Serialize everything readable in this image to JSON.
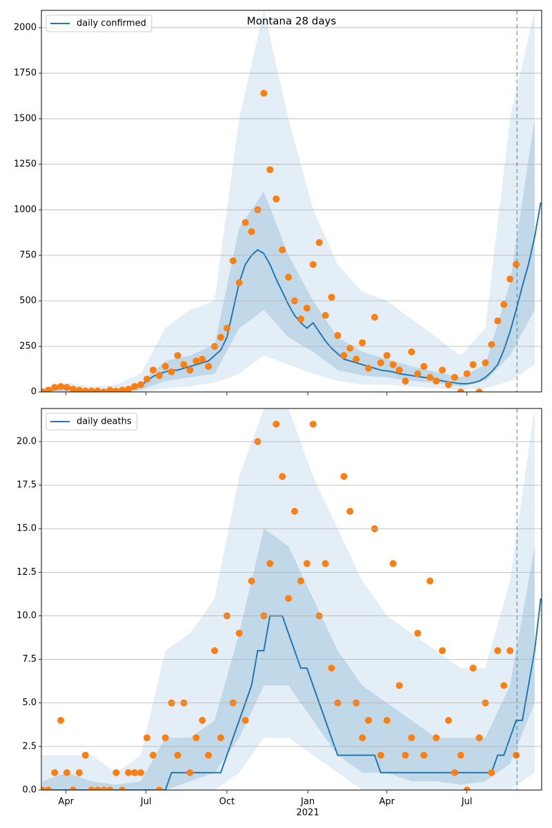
{
  "chart_data": [
    {
      "type": "line",
      "title": "Montana 28 days",
      "x": [
        "2020-03-05",
        "2020-03-12",
        "2020-03-19",
        "2020-03-26",
        "2020-04-02",
        "2020-04-09",
        "2020-04-16",
        "2020-04-23",
        "2020-04-30",
        "2020-05-07",
        "2020-05-14",
        "2020-05-21",
        "2020-05-28",
        "2020-06-04",
        "2020-06-11",
        "2020-06-18",
        "2020-06-25",
        "2020-07-02",
        "2020-07-09",
        "2020-07-16",
        "2020-07-23",
        "2020-07-30",
        "2020-08-06",
        "2020-08-13",
        "2020-08-20",
        "2020-08-27",
        "2020-09-03",
        "2020-09-10",
        "2020-09-17",
        "2020-09-24",
        "2020-10-01",
        "2020-10-08",
        "2020-10-15",
        "2020-10-22",
        "2020-10-29",
        "2020-11-05",
        "2020-11-12",
        "2020-11-19",
        "2020-11-26",
        "2020-12-03",
        "2020-12-10",
        "2020-12-17",
        "2020-12-24",
        "2020-12-31",
        "2021-01-07",
        "2021-01-14",
        "2021-01-21",
        "2021-01-28",
        "2021-02-04",
        "2021-02-11",
        "2021-02-18",
        "2021-02-25",
        "2021-03-04",
        "2021-03-11",
        "2021-03-18",
        "2021-03-25",
        "2021-04-01",
        "2021-04-08",
        "2021-04-15",
        "2021-04-22",
        "2021-04-29",
        "2021-05-06",
        "2021-05-13",
        "2021-05-20",
        "2021-05-27",
        "2021-06-03",
        "2021-06-10",
        "2021-06-17",
        "2021-06-24",
        "2021-07-01",
        "2021-07-08",
        "2021-07-15",
        "2021-07-22",
        "2021-07-29",
        "2021-08-05",
        "2021-08-12",
        "2021-08-19",
        "2021-08-26",
        "2021-09-02",
        "2021-09-09",
        "2021-09-16",
        "2021-09-23"
      ],
      "series": [
        {
          "name": "daily confirmed",
          "color": "#1f77b4",
          "values": [
            2,
            8,
            15,
            20,
            20,
            15,
            10,
            8,
            6,
            5,
            5,
            5,
            6,
            8,
            12,
            20,
            35,
            60,
            85,
            100,
            110,
            120,
            120,
            130,
            140,
            150,
            160,
            170,
            200,
            230,
            300,
            450,
            600,
            700,
            750,
            780,
            760,
            700,
            620,
            550,
            480,
            420,
            380,
            350,
            380,
            330,
            280,
            240,
            210,
            180,
            170,
            160,
            150,
            140,
            130,
            120,
            115,
            110,
            100,
            95,
            90,
            85,
            80,
            75,
            70,
            60,
            55,
            50,
            45,
            45,
            50,
            60,
            80,
            110,
            150,
            230,
            330,
            450,
            580,
            700,
            850,
            1040
          ]
        }
      ],
      "observed": {
        "color": "#ff7f0e",
        "values": [
          0,
          10,
          25,
          30,
          25,
          15,
          10,
          5,
          5,
          5,
          0,
          10,
          5,
          10,
          15,
          30,
          40,
          70,
          120,
          90,
          140,
          110,
          200,
          150,
          120,
          170,
          180,
          140,
          250,
          300,
          350,
          720,
          600,
          930,
          880,
          1000,
          1640,
          1220,
          1060,
          780,
          630,
          500,
          400,
          460,
          700,
          820,
          420,
          520,
          310,
          200,
          240,
          180,
          270,
          130,
          410,
          160,
          200,
          150,
          120,
          60,
          220,
          100,
          140,
          80,
          60,
          120,
          40,
          80,
          0,
          100,
          150,
          0,
          160,
          260,
          390,
          480,
          620,
          700,
          null,
          null,
          null,
          null
        ]
      },
      "band_x": [
        "2020-03-05",
        "2020-04-02",
        "2020-04-30",
        "2020-05-28",
        "2020-06-25",
        "2020-07-23",
        "2020-08-20",
        "2020-09-17",
        "2020-10-15",
        "2020-11-12",
        "2020-12-10",
        "2021-01-07",
        "2021-02-04",
        "2021-03-04",
        "2021-04-01",
        "2021-04-29",
        "2021-05-27",
        "2021-06-24",
        "2021-07-22",
        "2021-08-19",
        "2021-09-16"
      ],
      "bands": [
        {
          "color": "#1f77b4",
          "opacity": 0.12,
          "lower": [
            0,
            0,
            0,
            0,
            0,
            20,
            30,
            50,
            100,
            200,
            150,
            100,
            60,
            40,
            40,
            30,
            20,
            10,
            20,
            60,
            150
          ],
          "upper": [
            20,
            50,
            30,
            40,
            100,
            350,
            450,
            500,
            1500,
            2095,
            1500,
            1000,
            700,
            550,
            500,
            400,
            300,
            200,
            350,
            1500,
            2095
          ]
        },
        {
          "color": "#1f77b4",
          "opacity": 0.18,
          "lower": [
            0,
            5,
            2,
            3,
            10,
            60,
            80,
            100,
            350,
            450,
            300,
            220,
            120,
            90,
            80,
            60,
            50,
            30,
            60,
            200,
            450
          ],
          "upper": [
            8,
            30,
            12,
            12,
            50,
            170,
            200,
            260,
            900,
            1100,
            750,
            500,
            300,
            220,
            180,
            140,
            110,
            80,
            150,
            600,
            1500
          ]
        }
      ],
      "vline": {
        "value": "2021-08-27",
        "color": "#1f77b4"
      },
      "xlim": [
        "2020-03-04",
        "2021-09-24"
      ],
      "xticks": [
        "2020-04-01",
        "2020-07-01",
        "2020-10-01",
        "2021-01-01",
        "2021-04-01",
        "2021-07-01"
      ],
      "ylim": [
        0,
        2095
      ],
      "yticks": [
        0,
        250,
        500,
        750,
        1000,
        1250,
        1500,
        1750,
        2000
      ],
      "grid": true,
      "legend": "upper left"
    },
    {
      "type": "line",
      "x": [
        "2020-03-05",
        "2020-03-12",
        "2020-03-19",
        "2020-03-26",
        "2020-04-02",
        "2020-04-09",
        "2020-04-16",
        "2020-04-23",
        "2020-04-30",
        "2020-05-07",
        "2020-05-14",
        "2020-05-21",
        "2020-05-28",
        "2020-06-04",
        "2020-06-11",
        "2020-06-18",
        "2020-06-25",
        "2020-07-02",
        "2020-07-09",
        "2020-07-16",
        "2020-07-23",
        "2020-07-30",
        "2020-08-06",
        "2020-08-13",
        "2020-08-20",
        "2020-08-27",
        "2020-09-03",
        "2020-09-10",
        "2020-09-17",
        "2020-09-24",
        "2020-10-01",
        "2020-10-08",
        "2020-10-15",
        "2020-10-22",
        "2020-10-29",
        "2020-11-05",
        "2020-11-12",
        "2020-11-19",
        "2020-11-26",
        "2020-12-03",
        "2020-12-10",
        "2020-12-17",
        "2020-12-24",
        "2020-12-31",
        "2021-01-07",
        "2021-01-14",
        "2021-01-21",
        "2021-01-28",
        "2021-02-04",
        "2021-02-11",
        "2021-02-18",
        "2021-02-25",
        "2021-03-04",
        "2021-03-11",
        "2021-03-18",
        "2021-03-25",
        "2021-04-01",
        "2021-04-08",
        "2021-04-15",
        "2021-04-22",
        "2021-04-29",
        "2021-05-06",
        "2021-05-13",
        "2021-05-20",
        "2021-05-27",
        "2021-06-03",
        "2021-06-10",
        "2021-06-17",
        "2021-06-24",
        "2021-07-01",
        "2021-07-08",
        "2021-07-15",
        "2021-07-22",
        "2021-07-29",
        "2021-08-05",
        "2021-08-12",
        "2021-08-19",
        "2021-08-26",
        "2021-09-02",
        "2021-09-09",
        "2021-09-16",
        "2021-09-23"
      ],
      "series": [
        {
          "name": "daily deaths",
          "color": "#1f77b4",
          "values": [
            0,
            0,
            0,
            0,
            0,
            0,
            0,
            0,
            0,
            0,
            0,
            0,
            0,
            0,
            0,
            0,
            0,
            0,
            0,
            0,
            0,
            1,
            1,
            1,
            1,
            1,
            1,
            1,
            1,
            1,
            2,
            3,
            4,
            5,
            6,
            8,
            8,
            10,
            10,
            10,
            9,
            8,
            7,
            7,
            6,
            5,
            4,
            3,
            2,
            2,
            2,
            2,
            2,
            2,
            2,
            1,
            1,
            1,
            1,
            1,
            1,
            1,
            1,
            1,
            1,
            1,
            1,
            1,
            1,
            1,
            1,
            1,
            1,
            1,
            2,
            2,
            3,
            4,
            4,
            6,
            8,
            11
          ]
        }
      ],
      "observed": {
        "color": "#ff7f0e",
        "values": [
          0,
          0,
          1,
          4,
          1,
          0,
          1,
          2,
          0,
          0,
          0,
          0,
          1,
          0,
          1,
          1,
          1,
          3,
          2,
          0,
          3,
          5,
          2,
          5,
          1,
          3,
          4,
          2,
          8,
          3,
          10,
          5,
          9,
          4,
          12,
          20,
          10,
          13,
          21,
          18,
          11,
          16,
          12,
          13,
          21,
          10,
          13,
          7,
          5,
          18,
          16,
          5,
          3,
          4,
          15,
          2,
          4,
          13,
          6,
          2,
          3,
          9,
          2,
          12,
          3,
          8,
          4,
          1,
          2,
          0,
          7,
          3,
          5,
          1,
          8,
          6,
          8,
          2,
          null,
          null,
          null,
          null
        ]
      },
      "band_x": [
        "2020-03-05",
        "2020-04-02",
        "2020-04-30",
        "2020-05-28",
        "2020-06-25",
        "2020-07-23",
        "2020-08-20",
        "2020-09-17",
        "2020-10-15",
        "2020-11-12",
        "2020-12-10",
        "2021-01-07",
        "2021-02-04",
        "2021-03-04",
        "2021-04-01",
        "2021-04-29",
        "2021-05-27",
        "2021-06-24",
        "2021-07-22",
        "2021-08-19",
        "2021-09-16"
      ],
      "bands": [
        {
          "color": "#1f77b4",
          "opacity": 0.12,
          "lower": [
            0,
            0,
            0,
            0,
            0,
            0,
            0,
            0,
            1,
            3,
            3,
            2,
            1,
            0,
            0,
            0,
            0,
            0,
            0,
            0,
            1
          ],
          "upper": [
            2,
            2,
            2,
            1,
            2,
            8,
            9,
            11,
            18,
            21.9,
            21.9,
            18,
            15,
            12,
            10,
            9,
            8,
            7,
            7,
            12,
            21.9
          ]
        },
        {
          "color": "#1f77b4",
          "opacity": 0.18,
          "lower": [
            0,
            0,
            0,
            0,
            0,
            0,
            0.5,
            1,
            3,
            6,
            6,
            4,
            2,
            1,
            1,
            0.5,
            0.5,
            0.3,
            0.5,
            1.5,
            5
          ],
          "upper": [
            0.5,
            1,
            0.5,
            0.3,
            0.5,
            3,
            3,
            4,
            9,
            15,
            14,
            11,
            8,
            6,
            5,
            4,
            3,
            3,
            3,
            6,
            14
          ]
        }
      ],
      "vline": {
        "value": "2021-08-27",
        "color": "#1f77b4"
      },
      "xlim": [
        "2020-03-04",
        "2021-09-24"
      ],
      "xticks": [
        {
          "value": "2020-04-01",
          "label": "Apr"
        },
        {
          "value": "2020-07-01",
          "label": "Jul"
        },
        {
          "value": "2020-10-01",
          "label": "Oct"
        },
        {
          "value": "2021-01-01",
          "label": "Jan",
          "sublabel": "2021"
        },
        {
          "value": "2021-04-01",
          "label": "Apr"
        },
        {
          "value": "2021-07-01",
          "label": "Jul"
        }
      ],
      "ylim": [
        0,
        21.9
      ],
      "yticks": [
        {
          "value": 0,
          "label": "0.0"
        },
        2.5,
        {
          "value": 5,
          "label": "5.0"
        },
        7.5,
        {
          "value": 10,
          "label": "10.0"
        },
        12.5,
        {
          "value": 15,
          "label": "15.0"
        },
        17.5,
        {
          "value": 20,
          "label": "20.0"
        }
      ],
      "grid": true,
      "legend": "upper left"
    }
  ]
}
